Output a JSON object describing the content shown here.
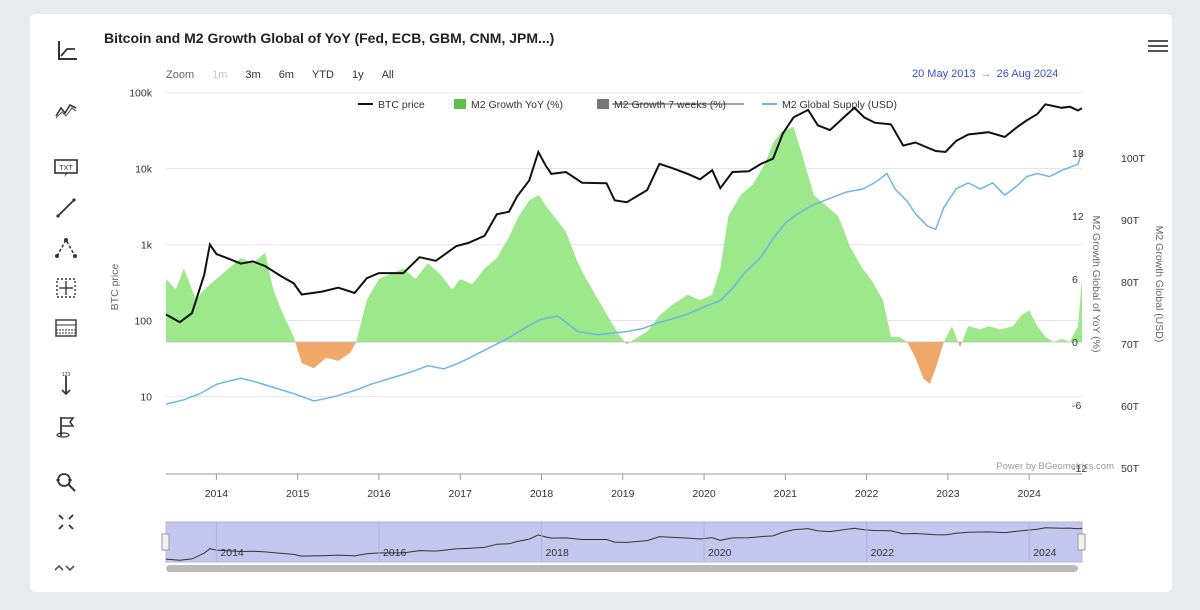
{
  "title": "Bitcoin and M2 Growth Global of YoY (Fed, ECB, GBM, CNM, JPM...)",
  "zoom": {
    "label": "Zoom",
    "buttons": [
      {
        "label": "1m",
        "disabled": true
      },
      {
        "label": "3m",
        "disabled": false
      },
      {
        "label": "6m",
        "disabled": false
      },
      {
        "label": "YTD",
        "disabled": false
      },
      {
        "label": "1y",
        "disabled": false
      },
      {
        "label": "All",
        "disabled": false
      }
    ]
  },
  "range": {
    "from": "20 May 2013",
    "arrow": "→",
    "to": "26 Aug 2024"
  },
  "credit": "Power by BGeometrics.com",
  "toolbar": [
    "chart-type-icon",
    "indicator-icon",
    "text-label-icon",
    "line-tool-icon",
    "fibonacci-icon",
    "measure-icon",
    "grid-icon",
    "vertical-line-icon",
    "flag-icon",
    "zoom-icon",
    "fullscreen-icon",
    "collapse-icon"
  ],
  "colors": {
    "btc": "#111111",
    "m2_pos": "#9ce88a",
    "m2_neg": "#f0a868",
    "m2_supply": "#6fb5e6",
    "navigator": "#c3c7ef"
  },
  "chart_data": {
    "type": "line",
    "title": "Bitcoin and M2 Growth Global of YoY (Fed, ECB, GBM, CNM, JPM...)",
    "x_range": [
      "2013-05-20",
      "2024-08-26"
    ],
    "x_ticks": [
      "2014",
      "2015",
      "2016",
      "2017",
      "2018",
      "2019",
      "2020",
      "2021",
      "2022",
      "2023",
      "2024"
    ],
    "legend": [
      {
        "name": "BTC price",
        "color": "#111111",
        "enabled": true
      },
      {
        "name": "M2 Growth YoY (%)",
        "color": "#5cc04a",
        "enabled": true
      },
      {
        "name": "M2 Growth 7 weeks (%)",
        "color": "#777777",
        "enabled": false
      },
      {
        "name": "M2 Global Supply (USD)",
        "color": "#6fb5e6",
        "enabled": true
      }
    ],
    "axes": {
      "left": {
        "title": "BTC price",
        "scale": "log",
        "ticks": [
          "10",
          "100",
          "1k",
          "10k",
          "100k"
        ],
        "range": [
          10,
          100000
        ]
      },
      "right1": {
        "title": "M2 Growth Global of YoY (%)",
        "ticks": [
          "-12",
          "-6",
          "0",
          "6",
          "12",
          "18"
        ],
        "range": [
          -12,
          18
        ]
      },
      "right2": {
        "title": "M2 Growth Global (USD)",
        "ticks": [
          "50T",
          "60T",
          "70T",
          "80T",
          "90T",
          "100T"
        ],
        "range": [
          50,
          100
        ]
      }
    },
    "series": [
      {
        "name": "BTC price",
        "axis": "left",
        "points": [
          [
            2013.38,
            120
          ],
          [
            2013.55,
            95
          ],
          [
            2013.7,
            125
          ],
          [
            2013.85,
            400
          ],
          [
            2013.92,
            1000
          ],
          [
            2014.0,
            750
          ],
          [
            2014.15,
            650
          ],
          [
            2014.3,
            560
          ],
          [
            2014.45,
            600
          ],
          [
            2014.6,
            520
          ],
          [
            2014.8,
            380
          ],
          [
            2014.95,
            310
          ],
          [
            2015.05,
            220
          ],
          [
            2015.3,
            240
          ],
          [
            2015.5,
            270
          ],
          [
            2015.7,
            230
          ],
          [
            2015.85,
            360
          ],
          [
            2016.0,
            420
          ],
          [
            2016.3,
            420
          ],
          [
            2016.5,
            680
          ],
          [
            2016.7,
            610
          ],
          [
            2016.95,
            950
          ],
          [
            2017.1,
            1050
          ],
          [
            2017.3,
            1300
          ],
          [
            2017.45,
            2500
          ],
          [
            2017.6,
            2700
          ],
          [
            2017.7,
            4300
          ],
          [
            2017.85,
            7000
          ],
          [
            2017.96,
            16500
          ],
          [
            2018.05,
            11000
          ],
          [
            2018.12,
            8500
          ],
          [
            2018.3,
            9000
          ],
          [
            2018.5,
            6500
          ],
          [
            2018.8,
            6400
          ],
          [
            2018.9,
            3800
          ],
          [
            2019.05,
            3600
          ],
          [
            2019.3,
            5200
          ],
          [
            2019.45,
            11500
          ],
          [
            2019.6,
            10200
          ],
          [
            2019.8,
            8500
          ],
          [
            2019.95,
            7200
          ],
          [
            2020.1,
            9500
          ],
          [
            2020.2,
            5500
          ],
          [
            2020.35,
            9000
          ],
          [
            2020.55,
            9200
          ],
          [
            2020.7,
            11500
          ],
          [
            2020.85,
            13500
          ],
          [
            2020.97,
            29000
          ],
          [
            2021.1,
            47000
          ],
          [
            2021.28,
            59000
          ],
          [
            2021.4,
            37000
          ],
          [
            2021.55,
            32000
          ],
          [
            2021.7,
            45000
          ],
          [
            2021.85,
            63000
          ],
          [
            2021.97,
            47000
          ],
          [
            2022.1,
            40000
          ],
          [
            2022.3,
            38000
          ],
          [
            2022.45,
            20000
          ],
          [
            2022.6,
            22000
          ],
          [
            2022.85,
            17000
          ],
          [
            2022.97,
            16500
          ],
          [
            2023.1,
            23000
          ],
          [
            2023.25,
            28000
          ],
          [
            2023.5,
            30000
          ],
          [
            2023.7,
            26000
          ],
          [
            2023.85,
            35000
          ],
          [
            2023.97,
            43000
          ],
          [
            2024.1,
            52000
          ],
          [
            2024.2,
            70000
          ],
          [
            2024.4,
            63000
          ],
          [
            2024.5,
            65000
          ],
          [
            2024.6,
            58000
          ],
          [
            2024.65,
            62000
          ]
        ]
      },
      {
        "name": "M2 Growth YoY (%)",
        "axis": "right1",
        "points": [
          [
            2013.38,
            6
          ],
          [
            2013.5,
            5
          ],
          [
            2013.6,
            7
          ],
          [
            2013.75,
            4
          ],
          [
            2013.85,
            5
          ],
          [
            2014.0,
            6
          ],
          [
            2014.15,
            7
          ],
          [
            2014.3,
            8
          ],
          [
            2014.45,
            7.5
          ],
          [
            2014.6,
            8.5
          ],
          [
            2014.7,
            5
          ],
          [
            2014.8,
            3
          ],
          [
            2014.95,
            0.5
          ],
          [
            2015.05,
            -2
          ],
          [
            2015.2,
            -2.5
          ],
          [
            2015.35,
            -1.5
          ],
          [
            2015.5,
            -1.8
          ],
          [
            2015.65,
            -1
          ],
          [
            2015.72,
            0
          ],
          [
            2015.85,
            4
          ],
          [
            2016.0,
            6
          ],
          [
            2016.15,
            6.5
          ],
          [
            2016.3,
            7
          ],
          [
            2016.45,
            6
          ],
          [
            2016.6,
            7.5
          ],
          [
            2016.75,
            6.5
          ],
          [
            2016.9,
            5
          ],
          [
            2017.0,
            6
          ],
          [
            2017.15,
            5.5
          ],
          [
            2017.3,
            7
          ],
          [
            2017.45,
            8
          ],
          [
            2017.6,
            10
          ],
          [
            2017.72,
            12
          ],
          [
            2017.85,
            13.5
          ],
          [
            2017.97,
            14
          ],
          [
            2018.05,
            13
          ],
          [
            2018.15,
            12
          ],
          [
            2018.3,
            10.5
          ],
          [
            2018.45,
            7.5
          ],
          [
            2018.55,
            6
          ],
          [
            2018.7,
            4
          ],
          [
            2018.85,
            2
          ],
          [
            2018.97,
            0.5
          ],
          [
            2019.05,
            -0.2
          ],
          [
            2019.15,
            0.3
          ],
          [
            2019.3,
            1
          ],
          [
            2019.45,
            2.5
          ],
          [
            2019.6,
            3.5
          ],
          [
            2019.8,
            4.5
          ],
          [
            2019.95,
            4
          ],
          [
            2020.1,
            4.5
          ],
          [
            2020.2,
            7
          ],
          [
            2020.3,
            12
          ],
          [
            2020.45,
            14
          ],
          [
            2020.6,
            15
          ],
          [
            2020.75,
            17
          ],
          [
            2020.85,
            19
          ],
          [
            2020.95,
            20
          ],
          [
            2021.1,
            20.5
          ],
          [
            2021.2,
            18
          ],
          [
            2021.35,
            14
          ],
          [
            2021.5,
            13
          ],
          [
            2021.65,
            12
          ],
          [
            2021.8,
            9
          ],
          [
            2021.95,
            7
          ],
          [
            2022.05,
            6
          ],
          [
            2022.2,
            4
          ],
          [
            2022.3,
            0.5
          ],
          [
            2022.4,
            0.5
          ],
          [
            2022.5,
            0
          ],
          [
            2022.6,
            -1.5
          ],
          [
            2022.7,
            -3.5
          ],
          [
            2022.78,
            -4
          ],
          [
            2022.85,
            -2.5
          ],
          [
            2022.95,
            0
          ],
          [
            2023.05,
            1.5
          ],
          [
            2023.15,
            -0.5
          ],
          [
            2023.25,
            1.5
          ],
          [
            2023.4,
            1.2
          ],
          [
            2023.5,
            1.5
          ],
          [
            2023.65,
            1.2
          ],
          [
            2023.8,
            1.5
          ],
          [
            2023.9,
            2.5
          ],
          [
            2024.0,
            3
          ],
          [
            2024.1,
            1.5
          ],
          [
            2024.2,
            0.5
          ],
          [
            2024.3,
            0
          ],
          [
            2024.4,
            0.3
          ],
          [
            2024.5,
            0
          ],
          [
            2024.6,
            1.5
          ],
          [
            2024.65,
            6
          ]
        ]
      },
      {
        "name": "M2 Global Supply (USD)",
        "axis": "right2",
        "points": [
          [
            2013.38,
            60.3
          ],
          [
            2013.6,
            61
          ],
          [
            2013.8,
            62
          ],
          [
            2014.0,
            63.5
          ],
          [
            2014.3,
            64.5
          ],
          [
            2014.5,
            63.8
          ],
          [
            2014.7,
            63
          ],
          [
            2014.95,
            62
          ],
          [
            2015.2,
            60.8
          ],
          [
            2015.45,
            61.5
          ],
          [
            2015.7,
            62.5
          ],
          [
            2015.9,
            63.5
          ],
          [
            2016.15,
            64.5
          ],
          [
            2016.4,
            65.5
          ],
          [
            2016.6,
            66.5
          ],
          [
            2016.8,
            66
          ],
          [
            2017.0,
            67
          ],
          [
            2017.3,
            69
          ],
          [
            2017.6,
            71
          ],
          [
            2017.85,
            73
          ],
          [
            2018.0,
            74
          ],
          [
            2018.2,
            74.5
          ],
          [
            2018.45,
            72
          ],
          [
            2018.7,
            71.5
          ],
          [
            2018.9,
            71.8
          ],
          [
            2019.05,
            72
          ],
          [
            2019.25,
            72.5
          ],
          [
            2019.45,
            73.5
          ],
          [
            2019.6,
            74
          ],
          [
            2019.8,
            74.8
          ],
          [
            2020.0,
            76
          ],
          [
            2020.2,
            77
          ],
          [
            2020.35,
            79
          ],
          [
            2020.5,
            81.5
          ],
          [
            2020.7,
            84
          ],
          [
            2020.85,
            87
          ],
          [
            2021.0,
            89.5
          ],
          [
            2021.15,
            91
          ],
          [
            2021.35,
            92.5
          ],
          [
            2021.55,
            93.5
          ],
          [
            2021.75,
            94.5
          ],
          [
            2021.95,
            95
          ],
          [
            2022.1,
            96
          ],
          [
            2022.25,
            97.5
          ],
          [
            2022.35,
            95
          ],
          [
            2022.5,
            93
          ],
          [
            2022.6,
            91
          ],
          [
            2022.75,
            89
          ],
          [
            2022.85,
            88.5
          ],
          [
            2022.95,
            92
          ],
          [
            2023.1,
            95
          ],
          [
            2023.25,
            96
          ],
          [
            2023.4,
            95
          ],
          [
            2023.55,
            96
          ],
          [
            2023.7,
            94
          ],
          [
            2023.85,
            95.5
          ],
          [
            2023.97,
            97
          ],
          [
            2024.1,
            97.5
          ],
          [
            2024.25,
            97
          ],
          [
            2024.4,
            98
          ],
          [
            2024.5,
            98.5
          ],
          [
            2024.6,
            99
          ],
          [
            2024.65,
            101
          ]
        ]
      }
    ],
    "navigator": {
      "ticks": [
        "2014",
        "2016",
        "2018",
        "2020",
        "2022",
        "2024"
      ]
    }
  }
}
